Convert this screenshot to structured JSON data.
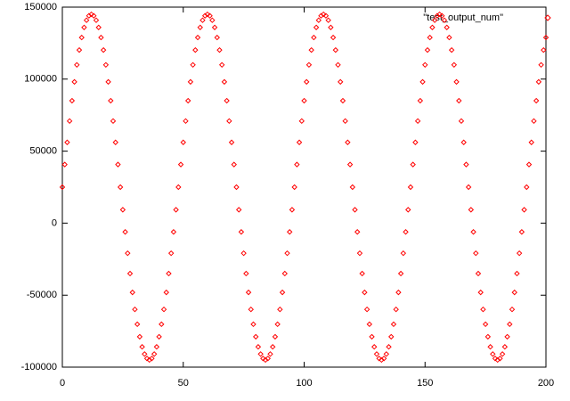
{
  "chart_data": {
    "type": "scatter",
    "x": [
      0,
      1,
      2,
      3,
      4,
      5,
      6,
      7,
      8,
      9,
      10,
      11,
      12,
      13,
      14,
      15,
      16,
      17,
      18,
      19,
      20,
      21,
      22,
      23,
      24,
      25,
      26,
      27,
      28,
      29,
      30,
      31,
      32,
      33,
      34,
      35,
      36,
      37,
      38,
      39,
      40,
      41,
      42,
      43,
      44,
      45,
      46,
      47,
      48,
      49,
      50,
      51,
      52,
      53,
      54,
      55,
      56,
      57,
      58,
      59,
      60,
      61,
      62,
      63,
      64,
      65,
      66,
      67,
      68,
      69,
      70,
      71,
      72,
      73,
      74,
      75,
      76,
      77,
      78,
      79,
      80,
      81,
      82,
      83,
      84,
      85,
      86,
      87,
      88,
      89,
      90,
      91,
      92,
      93,
      94,
      95,
      96,
      97,
      98,
      99,
      100,
      101,
      102,
      103,
      104,
      105,
      106,
      107,
      108,
      109,
      110,
      111,
      112,
      113,
      114,
      115,
      116,
      117,
      118,
      119,
      120,
      121,
      122,
      123,
      124,
      125,
      126,
      127,
      128,
      129,
      130,
      131,
      132,
      133,
      134,
      135,
      136,
      137,
      138,
      139,
      140,
      141,
      142,
      143,
      144,
      145,
      146,
      147,
      148,
      149,
      150,
      151,
      152,
      153,
      154,
      155,
      156,
      157,
      158,
      159,
      160,
      161,
      162,
      163,
      164,
      165,
      166,
      167,
      168,
      169,
      170,
      171,
      172,
      173,
      174,
      175,
      176,
      177,
      178,
      179,
      180,
      181,
      182,
      183,
      184,
      185,
      186,
      187,
      188,
      189,
      190,
      191,
      192,
      193,
      194,
      195,
      196,
      197,
      198,
      199,
      200
    ],
    "series": [
      {
        "name": "\"test_output_num\"",
        "color": "#ff0000",
        "values": [
          25000,
          40700,
          56100,
          70900,
          85000,
          98100,
          109900,
          120200,
          128900,
          135900,
          140900,
          144000,
          145000,
          144000,
          140900,
          135900,
          128900,
          120200,
          109900,
          98100,
          85000,
          70900,
          56100,
          40700,
          25000,
          9300,
          -6100,
          -20900,
          -35000,
          -48100,
          -59900,
          -70200,
          -78900,
          -85900,
          -90900,
          -94000,
          -95000,
          -94000,
          -90900,
          -85900,
          -78900,
          -70200,
          -59900,
          -48100,
          -35000,
          -20900,
          -6100,
          9300,
          25000,
          40700,
          56100,
          70900,
          85000,
          98100,
          109900,
          120200,
          128900,
          135900,
          140900,
          144000,
          145000,
          144000,
          140900,
          135900,
          128900,
          120200,
          109900,
          98100,
          85000,
          70900,
          56100,
          40700,
          25000,
          9300,
          -6100,
          -20900,
          -35000,
          -48100,
          -59900,
          -70200,
          -78900,
          -85900,
          -90900,
          -94000,
          -95000,
          -94000,
          -90900,
          -85900,
          -78900,
          -70200,
          -59900,
          -48100,
          -35000,
          -20900,
          -6100,
          9300,
          25000,
          40700,
          56100,
          70900,
          85000,
          98100,
          109900,
          120200,
          128900,
          135900,
          140900,
          144000,
          145000,
          144000,
          140900,
          135900,
          128900,
          120200,
          109900,
          98100,
          85000,
          70900,
          56100,
          40700,
          25000,
          9300,
          -6100,
          -20900,
          -35000,
          -48100,
          -59900,
          -70200,
          -78900,
          -85900,
          -90900,
          -94000,
          -95000,
          -94000,
          -90900,
          -85900,
          -78900,
          -70200,
          -59900,
          -48100,
          -35000,
          -20900,
          -6100,
          9300,
          25000,
          40700,
          56100,
          70900,
          85000,
          98100,
          109900,
          120200,
          128900,
          135900,
          140900,
          144000,
          145000,
          144000,
          140900,
          135900,
          128900,
          120200,
          109900,
          98100,
          85000,
          70900,
          56100,
          40700,
          25000,
          9300,
          -6100,
          -20900,
          -35000,
          -48100,
          -59900,
          -70200,
          -78900,
          -85900,
          -90900,
          -94000,
          -95000,
          -94000,
          -90900,
          -85900,
          -78900,
          -70200,
          -59900,
          -48100,
          -35000,
          -20900,
          -6100,
          9300,
          25000,
          40700,
          56100,
          70900,
          85000,
          98100,
          109900,
          120200,
          128900
        ]
      }
    ],
    "xlim": [
      0,
      200
    ],
    "xticks": [
      0,
      50,
      100,
      150,
      200
    ],
    "ylim": [
      -100000,
      150000
    ],
    "yticks": [
      -100000,
      -50000,
      0,
      50000,
      100000,
      150000
    ],
    "grid": false,
    "legend": "top-right"
  }
}
